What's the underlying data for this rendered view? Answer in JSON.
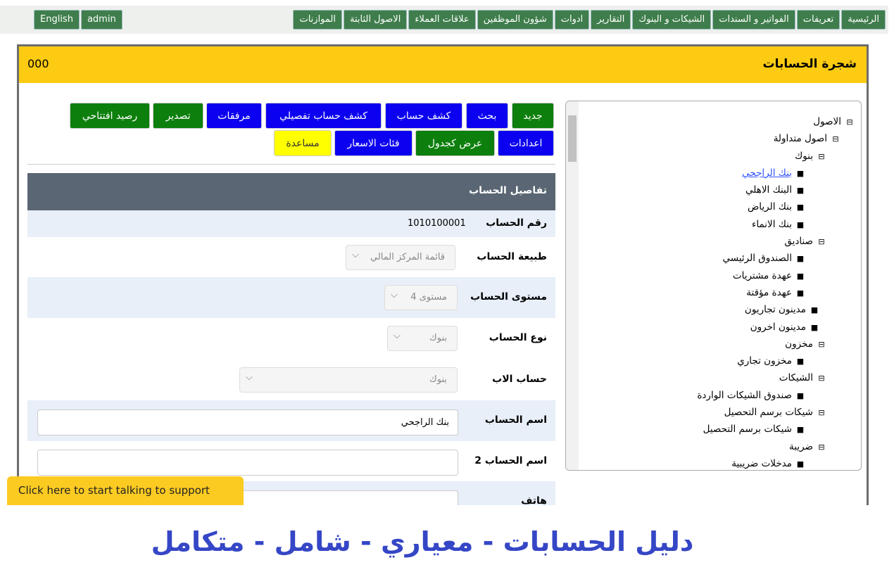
{
  "nav": {
    "menu": [
      "الرئيسية",
      "تعريفات",
      "الفواتير و السندات",
      "الشيكات و البنوك",
      "التقارير",
      "ادوات",
      "شؤون الموظفين",
      "علاقات العملاء",
      "الاصول الثابتة",
      "الموازنات"
    ],
    "user_menu": [
      "English",
      "admin"
    ]
  },
  "panel": {
    "title": "شجرة الحسابات",
    "code": "000"
  },
  "toolbar": {
    "row1": [
      "جديد",
      "بحث",
      "كشف حساب",
      "كشف حساب تفصيلي",
      "مرفقات",
      "تصدير",
      "رصيد افتتاحي"
    ],
    "row2": [
      "اعدادات",
      "عرض كجدول",
      "فئات الاسعار",
      "مساعدة"
    ]
  },
  "form": {
    "title": "تفاصيل الحساب",
    "fields": [
      {
        "label": "رقم الحساب",
        "value": "1010100001"
      },
      {
        "label": "طبيعة الحساب",
        "value": "قائمة المركز المالي"
      },
      {
        "label": "مستوى الحساب",
        "value": "مستوى 4"
      },
      {
        "label": "نوع الحساب",
        "value": "بنوك"
      },
      {
        "label": "حساب الاب",
        "value": "بنوك"
      },
      {
        "label": "اسم الحساب",
        "value": "بنك الراجحي"
      },
      {
        "label": "اسم الحساب 2"
      },
      {
        "label": "هاتف"
      }
    ]
  },
  "tree": {
    "nodes": [
      {
        "label": "الاصول",
        "children": [
          {
            "label": "اصول متداولة",
            "children": [
              {
                "label": "بنوك",
                "children": [
                  {
                    "label": "بنك الراجحي",
                    "link": true
                  },
                  {
                    "label": "البنك الاهلي"
                  },
                  {
                    "label": "بنك الرياض"
                  },
                  {
                    "label": "بنك الانماء"
                  }
                ]
              },
              {
                "label": "صناديق",
                "children": [
                  {
                    "label": "الصندوق الرئيسي"
                  },
                  {
                    "label": "عهدة مشتريات"
                  },
                  {
                    "label": "عهدة مؤقتة"
                  }
                ]
              },
              {
                "label": "مدينون تجاريون"
              },
              {
                "label": "مدينون اخرون"
              },
              {
                "label": "مخزون",
                "children": [
                  {
                    "label": "مخزون تجاري"
                  }
                ]
              },
              {
                "label": "الشيكات",
                "children": [
                  {
                    "label": "صندوق الشيكات الواردة"
                  }
                ]
              },
              {
                "label": "شيكات برسم التحصيل",
                "children": [
                  {
                    "label": "شيكات برسم التحصيل"
                  }
                ]
              },
              {
                "label": "ضريبة",
                "children": [
                  {
                    "label": "مدخلات ضريبية"
                  }
                ]
              }
            ]
          }
        ]
      }
    ]
  },
  "support": "Click here to start talking to support",
  "footer": "دليل الحسابات - معياري - شامل - متكامل"
}
